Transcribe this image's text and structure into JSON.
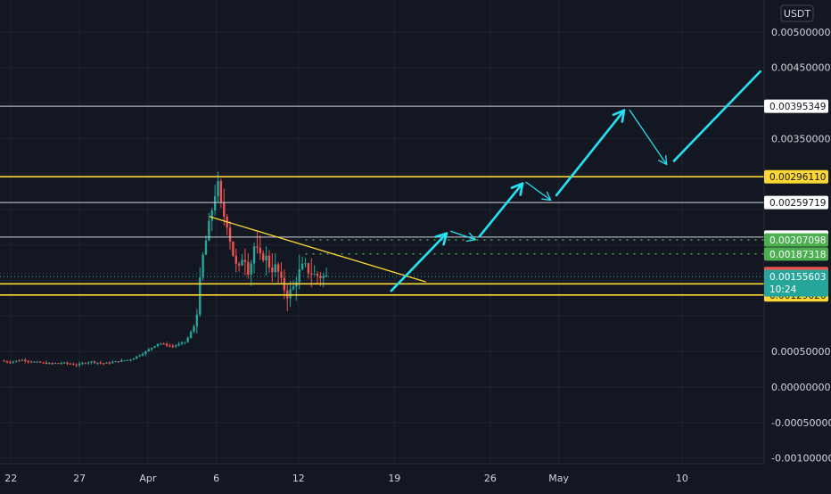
{
  "chart_data": {
    "type": "line",
    "title": "",
    "xlabel": "",
    "ylabel": "",
    "currency": "USDT",
    "x_ticks": [
      {
        "label": "22",
        "day": 0
      },
      {
        "label": "27",
        "day": 5
      },
      {
        "label": "Apr",
        "day": 10
      },
      {
        "label": "6",
        "day": 15
      },
      {
        "label": "12",
        "day": 21
      },
      {
        "label": "19",
        "day": 28
      },
      {
        "label": "26",
        "day": 35
      },
      {
        "label": "May",
        "day": 40
      },
      {
        "label": "10",
        "day": 49
      }
    ],
    "y_ticks": [
      0.005,
      0.0045,
      0.0035,
      0.0005,
      0.0,
      -0.0005,
      -0.001
    ],
    "y_tick_labels": [
      "0.00500000",
      "0.00450000",
      "0.00350000",
      "0.00050000",
      "0.00000000",
      "-0.00050000",
      "-0.00100000"
    ],
    "ylim": [
      -0.00108,
      0.00545
    ],
    "xlim": [
      -0.8,
      55
    ],
    "price_series": [
      [
        -0.5,
        0.00037
      ],
      [
        0,
        0.00035
      ],
      [
        1,
        0.00038
      ],
      [
        2,
        0.00035
      ],
      [
        3,
        0.00033
      ],
      [
        4,
        0.00034
      ],
      [
        5,
        0.00031
      ],
      [
        6,
        0.00036
      ],
      [
        7,
        0.00033
      ],
      [
        8,
        0.00036
      ],
      [
        9,
        0.00039
      ],
      [
        10,
        0.00049
      ],
      [
        11,
        0.00062
      ],
      [
        12,
        0.00057
      ],
      [
        13,
        0.00064
      ],
      [
        13.7,
        0.0009
      ],
      [
        14.2,
        0.0018
      ],
      [
        14.6,
        0.0022
      ],
      [
        15.0,
        0.0026
      ],
      [
        15.3,
        0.0029
      ],
      [
        15.6,
        0.0025
      ],
      [
        16.0,
        0.0023
      ],
      [
        16.4,
        0.0019
      ],
      [
        16.8,
        0.0016
      ],
      [
        17.2,
        0.0019
      ],
      [
        17.6,
        0.0016
      ],
      [
        18.0,
        0.002
      ],
      [
        18.4,
        0.00182
      ],
      [
        18.8,
        0.00185
      ],
      [
        19.2,
        0.00165
      ],
      [
        19.6,
        0.0017
      ],
      [
        20.0,
        0.00145
      ],
      [
        20.4,
        0.0013
      ],
      [
        20.8,
        0.00138
      ],
      [
        21.2,
        0.0016
      ],
      [
        21.6,
        0.00172
      ],
      [
        22.0,
        0.00162
      ],
      [
        22.4,
        0.00158
      ],
      [
        22.8,
        0.00156
      ],
      [
        23.2,
        0.00155
      ]
    ],
    "price_lines": [
      {
        "value": 0.00395349,
        "label": "0.00395349",
        "type": "white"
      },
      {
        "value": 0.0029611,
        "label": "0.00296110",
        "type": "yellow"
      },
      {
        "value": 0.00259719,
        "label": "0.00259719",
        "type": "white"
      },
      {
        "value": 0.00211069,
        "label": "0.00211069",
        "type": "white"
      },
      {
        "value": 0.00207098,
        "label": "0.00207098",
        "type": "green-dotted"
      },
      {
        "value": 0.00187318,
        "label": "0.00187318",
        "type": "green-dotted"
      },
      {
        "value": 0.0015977,
        "label": "0.00159770",
        "type": "red"
      },
      {
        "value": 0.00145285,
        "label": "0.00145285",
        "type": "yellow"
      },
      {
        "value": 0.00129626,
        "label": "0.00129626",
        "type": "yellow"
      }
    ],
    "current_price": {
      "value": 0.00155603,
      "label": "0.00155603",
      "countdown": "10:24"
    },
    "trendline": {
      "start": [
        14.5,
        0.0024
      ],
      "end": [
        30.3,
        0.00148
      ]
    },
    "projection_path": [
      [
        27.5,
        0.0013
      ],
      [
        32,
        0.0022
      ],
      [
        34,
        0.00207
      ],
      [
        37.5,
        0.0029
      ],
      [
        39.5,
        0.00262
      ],
      [
        45,
        0.00395
      ],
      [
        48,
        0.0031
      ],
      [
        55,
        0.0045
      ]
    ],
    "colors": {
      "background": "#131722",
      "grid": "#1f2330",
      "axis_text": "#d1d4dc",
      "up": "#26a69a",
      "down": "#ef5350",
      "yellow": "#fdd835",
      "white_line": "#d1d4dc",
      "green_label": "#4caf50",
      "red_label": "#ef5350",
      "current_label": "#26a69a",
      "arrow": "#27e1f2"
    }
  }
}
